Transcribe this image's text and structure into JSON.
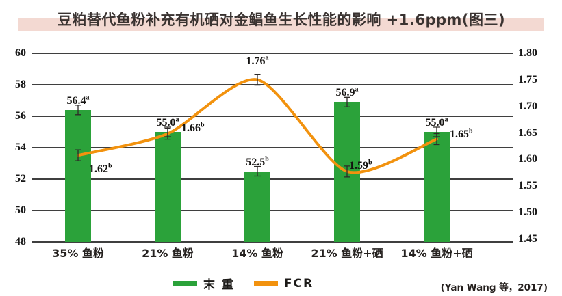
{
  "title": "豆粕替代鱼粉补充有机硒对金鲳鱼生长性能的影响 +1.6ppm(图三)",
  "source_note": "(Yan Wang 等，2017)",
  "colors": {
    "bar": "#2ba23a",
    "line": "#f2920e",
    "title_band": "#f3d9d2",
    "grid": "#3f3f3f",
    "error_bar": "#2e2a28"
  },
  "legend": [
    {
      "label": "末 重",
      "color": "#2ba23a",
      "type": "bar"
    },
    {
      "label": "FCR",
      "color": "#f2920e",
      "type": "line"
    }
  ],
  "chart_data": {
    "type": "bar",
    "subtype": "bar+line dual axis",
    "title": "豆粕替代鱼粉补充有机硒对金鲳鱼生长性能的影响 +1.6ppm(图三)",
    "categories": [
      "35% 鱼粉",
      "21% 鱼粉",
      "14% 鱼粉",
      "21% 鱼粉+硒",
      "14% 鱼粉+硒"
    ],
    "series": [
      {
        "name": "末 重",
        "type": "bar",
        "axis": "left",
        "values": [
          56.4,
          55.0,
          52.5,
          56.9,
          55.0
        ],
        "labels": [
          "56.4",
          "55.0",
          "52.5",
          "56.9",
          "55.0"
        ],
        "superscripts": [
          "a",
          "a",
          "b",
          "a",
          "a"
        ]
      },
      {
        "name": "FCR",
        "type": "line",
        "axis": "right",
        "values": [
          1.62,
          1.66,
          1.76,
          1.59,
          1.65
        ],
        "labels": [
          "1.62",
          "1.66",
          "1.76",
          "1.59",
          "1.65"
        ],
        "superscripts": [
          "b",
          "b",
          "a",
          "b",
          "b"
        ]
      }
    ],
    "left_axis": {
      "min": 48,
      "max": 60,
      "ticks": [
        48,
        50,
        52,
        54,
        56,
        58,
        60
      ]
    },
    "right_axis": {
      "min": 1.45,
      "max": 1.8,
      "ticks": [
        1.45,
        1.5,
        1.55,
        1.6,
        1.65,
        1.7,
        1.75,
        1.8
      ]
    },
    "grid": true,
    "error_bars": true,
    "legend_position": "bottom"
  }
}
